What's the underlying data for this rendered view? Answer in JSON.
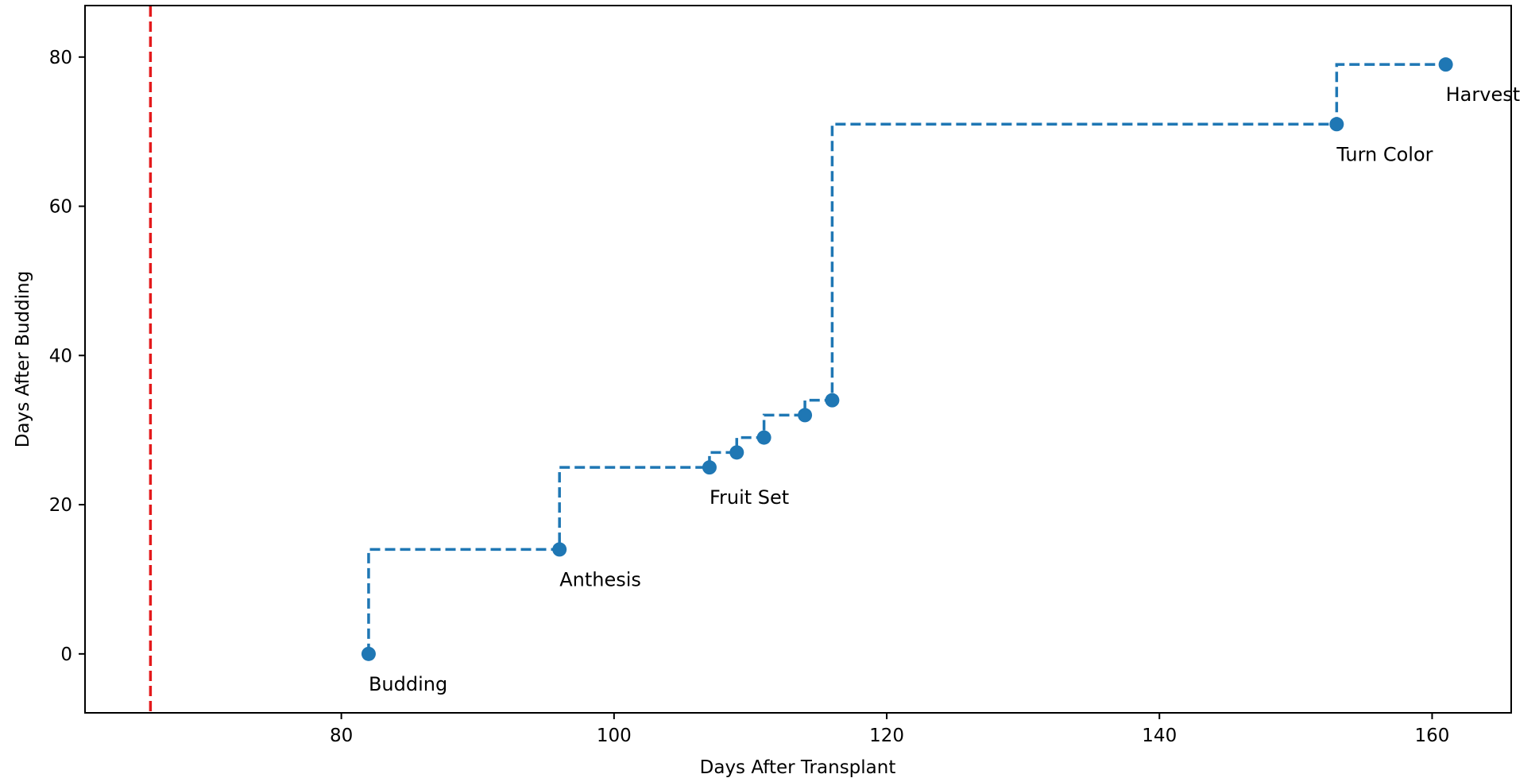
{
  "chart_data": {
    "type": "scatter",
    "xlabel": "Days After Transplant",
    "ylabel": "Days After Budding",
    "xlim": [
      61.2,
      165.8
    ],
    "ylim": [
      -7.9,
      86.9
    ],
    "xticks": [
      80,
      100,
      120,
      140,
      160
    ],
    "yticks": [
      0,
      20,
      40,
      60,
      80
    ],
    "grid": false,
    "line_style": "dashed step (step-before)",
    "series_color": "#1f77b4",
    "reference_line": {
      "orientation": "vertical",
      "x": 66,
      "color": "#e41a1c",
      "style": "dashed"
    },
    "points": [
      {
        "x": 82,
        "y": 0,
        "label": "Budding"
      },
      {
        "x": 96,
        "y": 14,
        "label": "Anthesis"
      },
      {
        "x": 107,
        "y": 25,
        "label": "Fruit Set"
      },
      {
        "x": 109,
        "y": 27,
        "label": ""
      },
      {
        "x": 111,
        "y": 29,
        "label": ""
      },
      {
        "x": 114,
        "y": 32,
        "label": ""
      },
      {
        "x": 116,
        "y": 34,
        "label": ""
      },
      {
        "x": 153,
        "y": 71,
        "label": "Turn Color"
      },
      {
        "x": 161,
        "y": 79,
        "label": "Harvest"
      }
    ]
  }
}
